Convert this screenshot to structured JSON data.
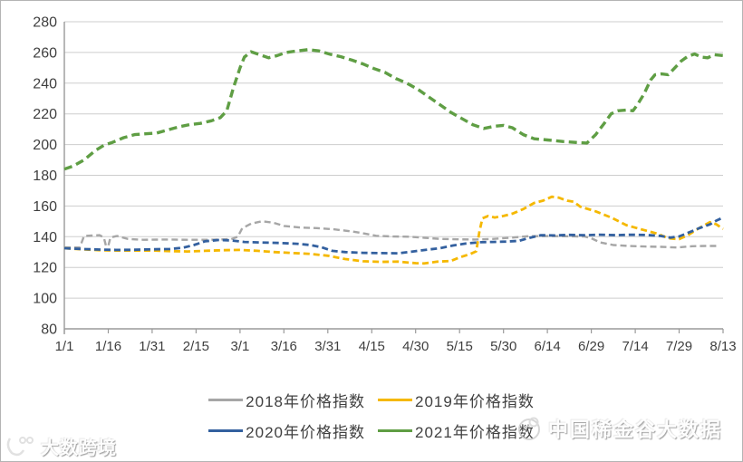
{
  "chart_data": {
    "type": "line",
    "title": "",
    "xlabel": "",
    "ylabel": "",
    "ylim": [
      80,
      280
    ],
    "y_ticks": [
      280,
      260,
      240,
      220,
      200,
      180,
      160,
      140,
      120,
      100,
      80
    ],
    "x_tick_labels": [
      "1/1",
      "1/16",
      "1/31",
      "2/15",
      "3/1",
      "3/16",
      "3/31",
      "4/15",
      "4/30",
      "5/15",
      "5/30",
      "6/14",
      "6/29",
      "7/14",
      "7/29",
      "8/13"
    ],
    "grid": "horizontal",
    "legend_position": "bottom",
    "axis_color": "#9a9a9a",
    "grid_color": "#cdcdcd",
    "tick_label_color": "#3f3f3f",
    "series": [
      {
        "name": "2018年价格指数",
        "color": "#a6a6a6",
        "dash": "7 4",
        "width": 2.4,
        "points": [
          [
            0,
            133
          ],
          [
            0.35,
            133
          ],
          [
            0.45,
            140.5
          ],
          [
            0.8,
            141
          ],
          [
            0.9,
            139.5
          ],
          [
            0.95,
            134
          ],
          [
            1.0,
            134
          ],
          [
            1.05,
            139.5
          ],
          [
            1.2,
            140.5
          ],
          [
            1.45,
            138.5
          ],
          [
            1.8,
            138
          ],
          [
            2.3,
            138.2
          ],
          [
            2.8,
            138
          ],
          [
            3.3,
            138
          ],
          [
            3.8,
            138.4
          ],
          [
            3.95,
            140
          ],
          [
            4.05,
            145.5
          ],
          [
            4.25,
            148.5
          ],
          [
            4.5,
            150
          ],
          [
            4.75,
            149.2
          ],
          [
            5.0,
            147
          ],
          [
            5.35,
            146
          ],
          [
            5.75,
            145.6
          ],
          [
            6.15,
            144.8
          ],
          [
            6.55,
            143.4
          ],
          [
            6.85,
            142
          ],
          [
            7.1,
            140.6
          ],
          [
            7.45,
            140.2
          ],
          [
            7.85,
            140
          ],
          [
            8.2,
            139.3
          ],
          [
            8.55,
            138.6
          ],
          [
            8.95,
            138.3
          ],
          [
            9.35,
            138.2
          ],
          [
            9.75,
            138.5
          ],
          [
            10.15,
            139.3
          ],
          [
            10.55,
            140.3
          ],
          [
            11.0,
            140.4
          ],
          [
            11.45,
            140.3
          ],
          [
            11.85,
            140.1
          ],
          [
            12.0,
            139
          ],
          [
            12.2,
            136.3
          ],
          [
            12.5,
            134.6
          ],
          [
            12.85,
            134
          ],
          [
            13.2,
            133.6
          ],
          [
            13.6,
            133.4
          ],
          [
            13.95,
            133
          ],
          [
            14.3,
            133.8
          ],
          [
            14.6,
            134
          ],
          [
            14.85,
            134
          ]
        ]
      },
      {
        "name": "2019年价格指数",
        "color": "#f5b800",
        "dash": "7 4",
        "width": 2.8,
        "points": [
          [
            0,
            132.5
          ],
          [
            0.4,
            131.8
          ],
          [
            0.8,
            131.2
          ],
          [
            1.2,
            131
          ],
          [
            1.6,
            131
          ],
          [
            2.0,
            131
          ],
          [
            2.4,
            130.6
          ],
          [
            2.8,
            130.4
          ],
          [
            3.2,
            130.8
          ],
          [
            3.6,
            131.2
          ],
          [
            4.0,
            131.4
          ],
          [
            4.4,
            130.8
          ],
          [
            4.8,
            130
          ],
          [
            5.2,
            129.4
          ],
          [
            5.6,
            128.8
          ],
          [
            6.0,
            127.6
          ],
          [
            6.4,
            125.4
          ],
          [
            6.8,
            124
          ],
          [
            7.2,
            123.6
          ],
          [
            7.6,
            123.8
          ],
          [
            8.0,
            122.8
          ],
          [
            8.2,
            122.6
          ],
          [
            8.5,
            123.8
          ],
          [
            8.8,
            124.2
          ],
          [
            9.0,
            126.5
          ],
          [
            9.25,
            128.8
          ],
          [
            9.38,
            130.5
          ],
          [
            9.45,
            143
          ],
          [
            9.52,
            152
          ],
          [
            9.65,
            153.5
          ],
          [
            9.8,
            152.5
          ],
          [
            10.0,
            153.5
          ],
          [
            10.2,
            155
          ],
          [
            10.45,
            158
          ],
          [
            10.7,
            162
          ],
          [
            10.9,
            163.5
          ],
          [
            11.1,
            166
          ],
          [
            11.25,
            165.5
          ],
          [
            11.45,
            163.5
          ],
          [
            11.6,
            162.8
          ],
          [
            11.75,
            159.5
          ],
          [
            12.1,
            156.5
          ],
          [
            12.45,
            152.5
          ],
          [
            12.8,
            147.5
          ],
          [
            13.15,
            144.7
          ],
          [
            13.5,
            142
          ],
          [
            13.75,
            139
          ],
          [
            14.0,
            138.4
          ],
          [
            14.2,
            141
          ],
          [
            14.45,
            145.5
          ],
          [
            14.7,
            149.5
          ],
          [
            14.85,
            148
          ],
          [
            15,
            145
          ]
        ]
      },
      {
        "name": "2020年价格指数",
        "color": "#33609f",
        "dash": "7 4",
        "width": 2.8,
        "points": [
          [
            0,
            132.5
          ],
          [
            0.4,
            132
          ],
          [
            0.8,
            131.6
          ],
          [
            1.2,
            131.4
          ],
          [
            1.6,
            131.5
          ],
          [
            2.0,
            131.8
          ],
          [
            2.4,
            132
          ],
          [
            2.7,
            132.8
          ],
          [
            2.95,
            134.6
          ],
          [
            3.2,
            137
          ],
          [
            3.5,
            137.8
          ],
          [
            3.8,
            137.6
          ],
          [
            4.1,
            136.6
          ],
          [
            4.5,
            136.2
          ],
          [
            4.9,
            135.9
          ],
          [
            5.3,
            135.4
          ],
          [
            5.6,
            134.6
          ],
          [
            5.85,
            133.2
          ],
          [
            6.1,
            130.8
          ],
          [
            6.4,
            130
          ],
          [
            6.8,
            129.5
          ],
          [
            7.2,
            129.3
          ],
          [
            7.6,
            129.2
          ],
          [
            7.9,
            130.2
          ],
          [
            8.2,
            131.3
          ],
          [
            8.55,
            132.5
          ],
          [
            8.85,
            134.3
          ],
          [
            9.15,
            135.6
          ],
          [
            9.45,
            136.4
          ],
          [
            9.75,
            136.6
          ],
          [
            10.05,
            136.8
          ],
          [
            10.35,
            137.3
          ],
          [
            10.6,
            139.3
          ],
          [
            10.85,
            141
          ],
          [
            11.15,
            140.8
          ],
          [
            11.5,
            141.2
          ],
          [
            11.85,
            141
          ],
          [
            12.2,
            141.3
          ],
          [
            12.55,
            141
          ],
          [
            12.9,
            141.3
          ],
          [
            13.25,
            141.1
          ],
          [
            13.55,
            140.6
          ],
          [
            13.8,
            139.4
          ],
          [
            14.0,
            140.2
          ],
          [
            14.2,
            142.5
          ],
          [
            14.45,
            145.5
          ],
          [
            14.7,
            148
          ],
          [
            14.85,
            150.5
          ],
          [
            15,
            152.5
          ]
        ]
      },
      {
        "name": "2021年价格指数",
        "color": "#5f9e44",
        "dash": "9 5",
        "width": 3.4,
        "points": [
          [
            0,
            184
          ],
          [
            0.2,
            186
          ],
          [
            0.45,
            190
          ],
          [
            0.7,
            196
          ],
          [
            0.9,
            199.5
          ],
          [
            1.1,
            201.5
          ],
          [
            1.35,
            204.5
          ],
          [
            1.6,
            206.5
          ],
          [
            1.85,
            207
          ],
          [
            2.1,
            207.5
          ],
          [
            2.35,
            209.5
          ],
          [
            2.6,
            211.5
          ],
          [
            2.85,
            213
          ],
          [
            3.1,
            213.8
          ],
          [
            3.35,
            215.5
          ],
          [
            3.55,
            217.5
          ],
          [
            3.7,
            222
          ],
          [
            3.85,
            237
          ],
          [
            4.0,
            250
          ],
          [
            4.1,
            257
          ],
          [
            4.25,
            260.5
          ],
          [
            4.45,
            258.5
          ],
          [
            4.65,
            256.5
          ],
          [
            4.85,
            258
          ],
          [
            5.05,
            260
          ],
          [
            5.3,
            261
          ],
          [
            5.55,
            261.8
          ],
          [
            5.8,
            261
          ],
          [
            6.05,
            258.8
          ],
          [
            6.3,
            257.2
          ],
          [
            6.55,
            255
          ],
          [
            6.8,
            252.5
          ],
          [
            7.05,
            249.5
          ],
          [
            7.3,
            247
          ],
          [
            7.55,
            243
          ],
          [
            7.8,
            240
          ],
          [
            8.05,
            236
          ],
          [
            8.3,
            231
          ],
          [
            8.55,
            226
          ],
          [
            8.8,
            221
          ],
          [
            9.05,
            217
          ],
          [
            9.3,
            213
          ],
          [
            9.55,
            210.5
          ],
          [
            9.8,
            212
          ],
          [
            10.0,
            212.5
          ],
          [
            10.2,
            211
          ],
          [
            10.45,
            206.5
          ],
          [
            10.7,
            203.8
          ],
          [
            11.0,
            203
          ],
          [
            11.35,
            202
          ],
          [
            11.7,
            201.3
          ],
          [
            11.9,
            201
          ],
          [
            12.1,
            206.5
          ],
          [
            12.3,
            214
          ],
          [
            12.45,
            220
          ],
          [
            12.6,
            222
          ],
          [
            12.8,
            222.5
          ],
          [
            12.95,
            222
          ],
          [
            13.05,
            226
          ],
          [
            13.2,
            233
          ],
          [
            13.35,
            242
          ],
          [
            13.45,
            245.5
          ],
          [
            13.6,
            246
          ],
          [
            13.75,
            245.5
          ],
          [
            13.9,
            250
          ],
          [
            14.05,
            254.5
          ],
          [
            14.2,
            257.5
          ],
          [
            14.35,
            259
          ],
          [
            14.5,
            257
          ],
          [
            14.65,
            256.5
          ],
          [
            14.8,
            258.5
          ],
          [
            15,
            258
          ]
        ]
      }
    ]
  },
  "watermarks": {
    "bottom_right": "中国稀金谷大数据",
    "bottom_left": "大数跨境"
  }
}
